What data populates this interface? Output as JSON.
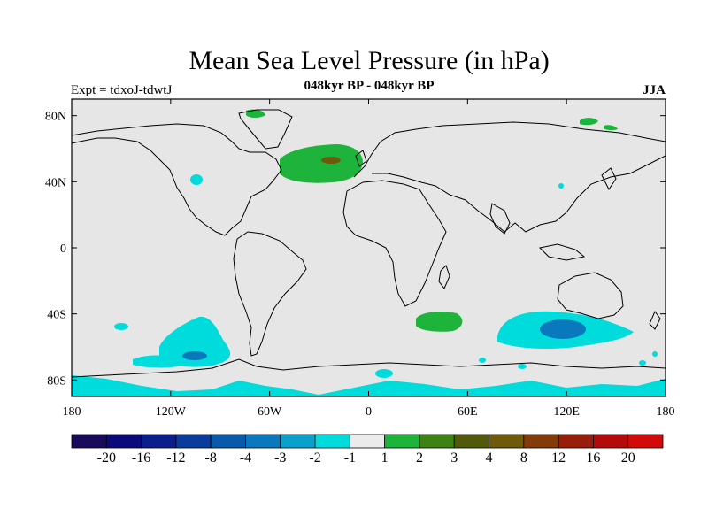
{
  "title": "Mean Sea Level Pressure (in hPa)",
  "subtitle": "048kyr BP - 048kyr BP",
  "experiment_label": "Expt = tdxoJ-tdwtJ",
  "season_label": "JJA",
  "map": {
    "lon_range": [
      -180,
      180
    ],
    "lat_range": [
      -90,
      90
    ],
    "land_color": "#e6e6e6",
    "coast_color": "#000000",
    "lat_ticks": [
      {
        "value": 80,
        "label": "80N"
      },
      {
        "value": 40,
        "label": "40N"
      },
      {
        "value": 0,
        "label": "0"
      },
      {
        "value": -40,
        "label": "40S"
      },
      {
        "value": -80,
        "label": "80S"
      }
    ],
    "lon_ticks": [
      {
        "value": -180,
        "label": "180"
      },
      {
        "value": -120,
        "label": "120W"
      },
      {
        "value": -60,
        "label": "60W"
      },
      {
        "value": 0,
        "label": "0"
      },
      {
        "value": 60,
        "label": "60E"
      },
      {
        "value": 120,
        "label": "120E"
      },
      {
        "value": 180,
        "label": "180"
      }
    ]
  },
  "colorbar": {
    "colors": [
      "#1a0a5a",
      "#0a0a7a",
      "#0a1e8c",
      "#0a3c9c",
      "#0a5aac",
      "#0a78bc",
      "#0aa0cc",
      "#00dcdc",
      "#ebebeb",
      "#1eb43c",
      "#3c8214",
      "#505a0a",
      "#6e5a0a",
      "#823c0a",
      "#961e0a",
      "#b40a0a",
      "#d20a0a"
    ],
    "labels": [
      "-20",
      "-16",
      "-12",
      "-8",
      "-4",
      "-3",
      "-2",
      "-1",
      "1",
      "2",
      "3",
      "4",
      "8",
      "12",
      "16",
      "20"
    ]
  }
}
